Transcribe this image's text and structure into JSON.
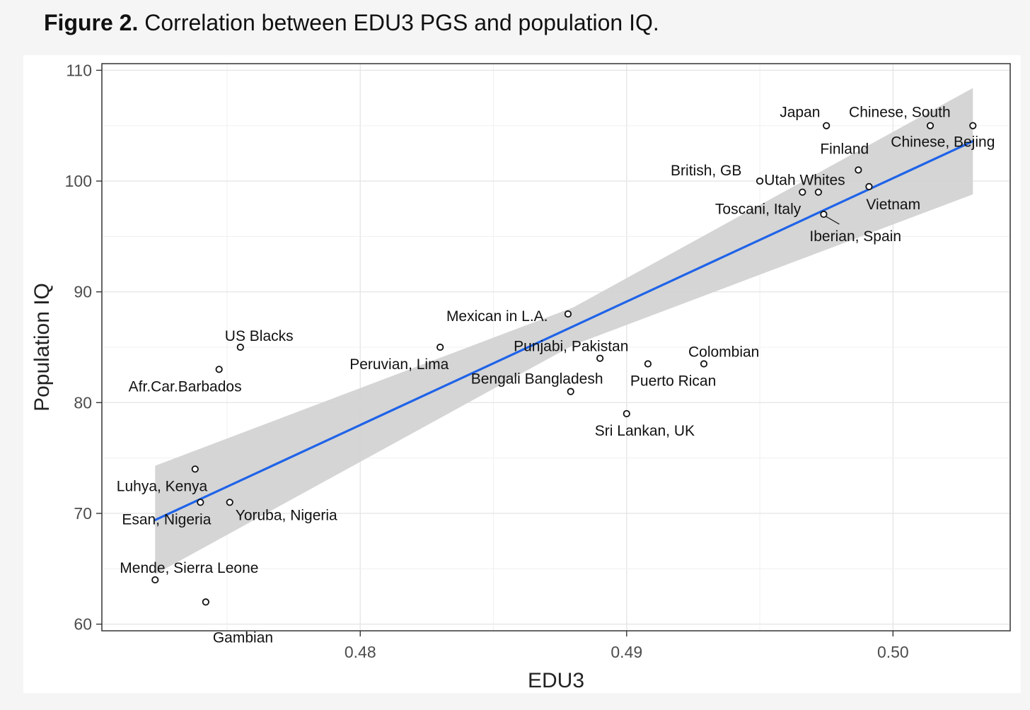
{
  "caption": {
    "label": "Figure 2.",
    "text": "Correlation between EDU3 PGS and population IQ."
  },
  "colors": {
    "trend_line": "#1f63e8",
    "confidence_band": "#d3d3d3",
    "grid": "#e6e6e6",
    "axis_text": "#4d4d4d"
  },
  "chart_data": {
    "type": "scatter",
    "xlabel": "EDU3",
    "ylabel": "Population IQ",
    "xlim": [
      0.4703,
      0.5044
    ],
    "ylim": [
      59.4,
      110.6
    ],
    "x_ticks": [
      0.48,
      0.49,
      0.5
    ],
    "x_tick_labels": [
      "0.48",
      "0.49",
      "0.50"
    ],
    "y_ticks": [
      60,
      70,
      80,
      90,
      100,
      110
    ],
    "y_tick_labels": [
      "60",
      "70",
      "80",
      "90",
      "100",
      "110"
    ],
    "grid": true,
    "legend": "none",
    "trend_line": {
      "method": "linear",
      "start": [
        0.4723,
        69.4
      ],
      "end": [
        0.503,
        103.6
      ],
      "band_lower": [
        [
          0.4723,
          64.5
        ],
        [
          0.488,
          85.2
        ],
        [
          0.503,
          98.8
        ]
      ],
      "band_upper": [
        [
          0.4723,
          74.3
        ],
        [
          0.488,
          88.6
        ],
        [
          0.503,
          108.4
        ]
      ]
    },
    "points": [
      {
        "label": "Japan",
        "x": 0.4975,
        "y": 105
      },
      {
        "label": "Chinese, South",
        "x": 0.5014,
        "y": 105
      },
      {
        "label": "Chinese, Bejing",
        "x": 0.503,
        "y": 105
      },
      {
        "label": "Finland",
        "x": 0.4987,
        "y": 101
      },
      {
        "label": "British, GB",
        "x": 0.495,
        "y": 100
      },
      {
        "label": "Utah Whites",
        "x": 0.4966,
        "y": 99
      },
      {
        "label": "Toscani, Italy",
        "x": 0.4972,
        "y": 99
      },
      {
        "label": "Vietnam",
        "x": 0.4991,
        "y": 99.5
      },
      {
        "label": "Iberian, Spain",
        "x": 0.4974,
        "y": 97
      },
      {
        "label": "Mexican in L.A.",
        "x": 0.4878,
        "y": 88
      },
      {
        "label": "Peruvian, Lima",
        "x": 0.483,
        "y": 85
      },
      {
        "label": "Punjabi, Pakistan",
        "x": 0.489,
        "y": 84
      },
      {
        "label": "Puerto Rican",
        "x": 0.4908,
        "y": 83.5
      },
      {
        "label": "Colombian",
        "x": 0.4929,
        "y": 83.5
      },
      {
        "label": "Bengali Bangladesh",
        "x": 0.4879,
        "y": 81
      },
      {
        "label": "Sri Lankan, UK",
        "x": 0.49,
        "y": 79
      },
      {
        "label": "US Blacks",
        "x": 0.4755,
        "y": 85
      },
      {
        "label": "Afr.Car.Barbados",
        "x": 0.4747,
        "y": 83
      },
      {
        "label": "Luhya, Kenya",
        "x": 0.4738,
        "y": 74
      },
      {
        "label": "Esan, Nigeria",
        "x": 0.474,
        "y": 71
      },
      {
        "label": "Yoruba, Nigeria",
        "x": 0.4751,
        "y": 71
      },
      {
        "label": "Mende, Sierra Leone",
        "x": 0.4723,
        "y": 64
      },
      {
        "label": "Gambian",
        "x": 0.4742,
        "y": 62
      }
    ]
  }
}
